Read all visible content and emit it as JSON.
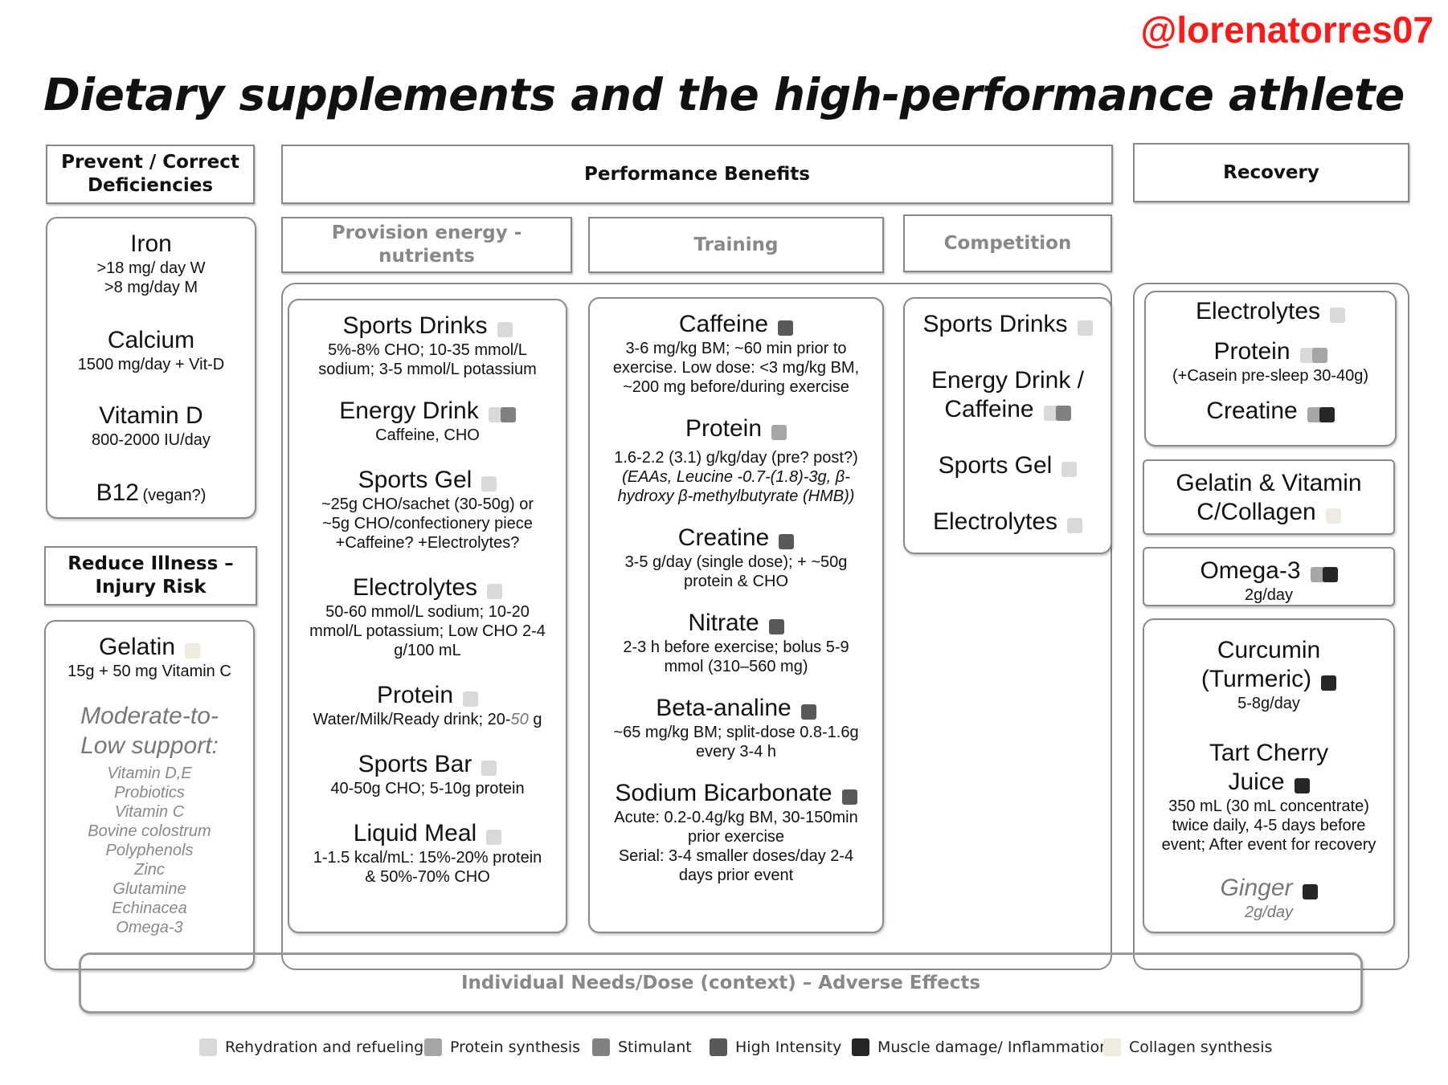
{
  "handle": "@lorenatorres07",
  "title": "Dietary supplements and the high-performance athlete",
  "headers": {
    "prevent": "Prevent / Correct Deficiencies",
    "performance": "Performance Benefits",
    "recovery": "Recovery",
    "reduce_illness": "Reduce Illness – Injury Risk",
    "provision": "Provision energy - nutrients",
    "training": "Training",
    "competition": "Competition"
  },
  "colors": {
    "rehydration": "#d9d9d9",
    "protein_synthesis": "#a6a6a6",
    "stimulant": "#808080",
    "high_intensity": "#595959",
    "muscle_damage": "#262626",
    "collagen": "#eeece1"
  },
  "deficiencies": [
    {
      "name": "Iron",
      "desc": [
        ">18 mg/ day W",
        ">8 mg/day M"
      ]
    },
    {
      "name": "Calcium",
      "desc": [
        "1500 mg/day + Vit-D"
      ]
    },
    {
      "name": "Vitamin D",
      "desc": [
        "800-2000 IU/day"
      ]
    },
    {
      "name": "B12",
      "name_suffix": "(vegan?)"
    }
  ],
  "illness": {
    "gelatin": {
      "name": "Gelatin",
      "desc": "15g + 50 mg Vitamin C"
    },
    "support_title": "Moderate-to-Low support:",
    "support_items": [
      "Vitamin D,E",
      "Probiotics",
      "Vitamin C",
      "Bovine colostrum",
      "Polyphenols",
      "Zinc",
      "Glutamine",
      "Echinacea",
      "Omega-3"
    ]
  },
  "provision": [
    {
      "name": "Sports Drinks",
      "desc": "5%-8% CHO; 10-35 mmol/L sodium; 3-5 mmol/L potassium"
    },
    {
      "name": "Energy Drink",
      "desc": "Caffeine, CHO"
    },
    {
      "name": "Sports Gel",
      "desc": "~25g CHO/sachet (30-50g) or ~5g CHO/confectionery piece +Caffeine? +Electrolytes?"
    },
    {
      "name": "Electrolytes",
      "desc": "50-60 mmol/L sodium; 10-20 mmol/L potassium; Low CHO 2-4 g/100 mL"
    },
    {
      "name": "Protein",
      "desc_a": "Water/Milk/Ready drink; 20-",
      "desc_b": "50",
      "desc_c": " g"
    },
    {
      "name": "Sports Bar",
      "desc": "40-50g CHO; 5-10g protein"
    },
    {
      "name": "Liquid Meal",
      "desc": "1-1.5 kcal/mL: 15%-20% protein & 50%-70% CHO"
    }
  ],
  "training": [
    {
      "name": "Caffeine",
      "desc": "3-6 mg/kg BM; ~60 min prior to exercise. Low dose: <3 mg/kg BM, ~200 mg before/during exercise"
    },
    {
      "name": "Protein",
      "desc": "1.6-2.2 (3.1) g/kg/day (pre? post?)",
      "desc_it": "(EAAs, Leucine -0.7-(1.8)-3g, β-hydroxy β-methylbutyrate (HMB))"
    },
    {
      "name": "Creatine",
      "desc": "3-5 g/day (single dose); + ~50g protein & CHO"
    },
    {
      "name": "Nitrate",
      "desc": "2-3 h before exercise; bolus 5-9 mmol (310–560 mg)"
    },
    {
      "name": "Beta-analine",
      "desc": "~65 mg/kg BM; split-dose 0.8-1.6g every 3-4 h"
    },
    {
      "name": "Sodium Bicarbonate",
      "desc": "Acute: 0.2-0.4g/kg BM, 30-150min prior exercise",
      "desc2": "Serial: 3-4 smaller doses/day 2-4 days prior event"
    }
  ],
  "competition": [
    {
      "name": "Sports Drinks"
    },
    {
      "name": "Energy Drink / Caffeine"
    },
    {
      "name": "Sports Gel"
    },
    {
      "name": "Electrolytes"
    }
  ],
  "recovery": {
    "electrolytes": "Electrolytes",
    "protein": "Protein",
    "protein_desc": "(+Casein pre-sleep 30-40g)",
    "creatine": "Creatine",
    "gelatin": "Gelatin & Vitamin C/Collagen",
    "omega": "Omega-3",
    "omega_desc": "2g/day",
    "curcumin": "Curcumin (Turmeric)",
    "curcumin_desc": "5-8g/day",
    "cherry": "Tart Cherry Juice",
    "cherry_desc": "350 mL (30 mL concentrate) twice daily, 4-5 days before event; After event for recovery",
    "ginger": "Ginger",
    "ginger_desc": "2g/day"
  },
  "footer": "Individual Needs/Dose (context) – Adverse Effects",
  "legend": [
    {
      "label": "Rehydration and refueling",
      "color": "#d9d9d9"
    },
    {
      "label": "Protein synthesis",
      "color": "#a6a6a6"
    },
    {
      "label": "Stimulant",
      "color": "#808080"
    },
    {
      "label": "High Intensity",
      "color": "#595959"
    },
    {
      "label": "Muscle damage/ Inflammation",
      "color": "#262626"
    },
    {
      "label": "Collagen synthesis",
      "color": "#eeece1"
    }
  ]
}
